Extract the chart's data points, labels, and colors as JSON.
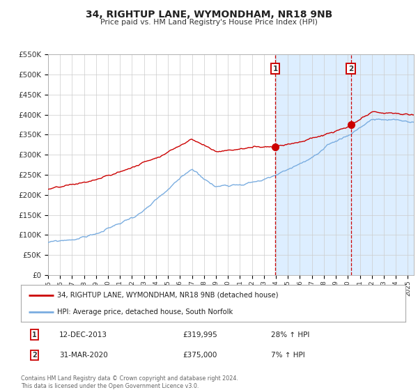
{
  "title": "34, RIGHTUP LANE, WYMONDHAM, NR18 9NB",
  "subtitle": "Price paid vs. HM Land Registry's House Price Index (HPI)",
  "xlim": [
    1995,
    2025.5
  ],
  "ylim": [
    0,
    550000
  ],
  "yticks": [
    0,
    50000,
    100000,
    150000,
    200000,
    250000,
    300000,
    350000,
    400000,
    450000,
    500000,
    550000
  ],
  "ytick_labels": [
    "£0",
    "£50K",
    "£100K",
    "£150K",
    "£200K",
    "£250K",
    "£300K",
    "£350K",
    "£400K",
    "£450K",
    "£500K",
    "£550K"
  ],
  "xticks": [
    1995,
    1996,
    1997,
    1998,
    1999,
    2000,
    2001,
    2002,
    2003,
    2004,
    2005,
    2006,
    2007,
    2008,
    2009,
    2010,
    2011,
    2012,
    2013,
    2014,
    2015,
    2016,
    2017,
    2018,
    2019,
    2020,
    2021,
    2022,
    2023,
    2024,
    2025
  ],
  "red_color": "#cc0000",
  "blue_color": "#7aade0",
  "vline1_x": 2013.95,
  "vline2_x": 2020.25,
  "marker1_x": 2013.95,
  "marker1_y": 319995,
  "marker2_x": 2020.25,
  "marker2_y": 375000,
  "annotation1": {
    "date": "12-DEC-2013",
    "price": "£319,995",
    "change": "28% ↑ HPI"
  },
  "annotation2": {
    "date": "31-MAR-2020",
    "price": "£375,000",
    "change": "7% ↑ HPI"
  },
  "legend_line1": "34, RIGHTUP LANE, WYMONDHAM, NR18 9NB (detached house)",
  "legend_line2": "HPI: Average price, detached house, South Norfolk",
  "footer1": "Contains HM Land Registry data © Crown copyright and database right 2024.",
  "footer2": "This data is licensed under the Open Government Licence v3.0.",
  "plot_bg": "#ffffff",
  "shaded_region_color": "#ddeeff"
}
